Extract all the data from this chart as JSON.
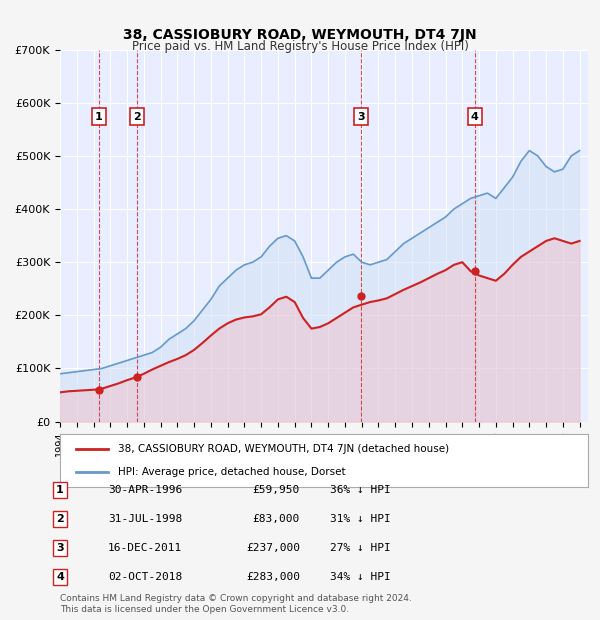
{
  "title": "38, CASSIOBURY ROAD, WEYMOUTH, DT4 7JN",
  "subtitle": "Price paid vs. HM Land Registry's House Price Index (HPI)",
  "ylabel": "",
  "ylim": [
    0,
    700000
  ],
  "yticks": [
    0,
    100000,
    200000,
    300000,
    400000,
    500000,
    600000,
    700000
  ],
  "ytick_labels": [
    "£0",
    "£100K",
    "£200K",
    "£300K",
    "£400K",
    "£500K",
    "£600K",
    "£700K"
  ],
  "xlim_start": 1994.0,
  "xlim_end": 2025.5,
  "background_color": "#f0f4ff",
  "plot_bg_color": "#e8eeff",
  "hpi_color": "#6699cc",
  "hpi_fill_color": "#d0dff5",
  "price_color": "#cc2222",
  "grid_color": "#ffffff",
  "transactions": [
    {
      "num": 1,
      "date_label": "30-APR-1996",
      "year": 1996.33,
      "price": 59950,
      "pct": "36%"
    },
    {
      "num": 2,
      "date_label": "31-JUL-1998",
      "year": 1998.58,
      "price": 83000,
      "pct": "31%"
    },
    {
      "num": 3,
      "date_label": "16-DEC-2011",
      "year": 2011.96,
      "price": 237000,
      "pct": "27%"
    },
    {
      "num": 4,
      "date_label": "02-OCT-2018",
      "year": 2018.75,
      "price": 283000,
      "pct": "34%"
    }
  ],
  "legend_property_label": "38, CASSIOBURY ROAD, WEYMOUTH, DT4 7JN (detached house)",
  "legend_hpi_label": "HPI: Average price, detached house, Dorset",
  "footer_text": "Contains HM Land Registry data © Crown copyright and database right 2024.\nThis data is licensed under the Open Government Licence v3.0.",
  "hpi_years": [
    1994,
    1994.5,
    1995,
    1995.5,
    1996,
    1996.5,
    1997,
    1997.5,
    1998,
    1998.5,
    1999,
    1999.5,
    2000,
    2000.5,
    2001,
    2001.5,
    2002,
    2002.5,
    2003,
    2003.5,
    2004,
    2004.5,
    2005,
    2005.5,
    2006,
    2006.5,
    2007,
    2007.5,
    2008,
    2008.5,
    2009,
    2009.5,
    2010,
    2010.5,
    2011,
    2011.5,
    2012,
    2012.5,
    2013,
    2013.5,
    2014,
    2014.5,
    2015,
    2015.5,
    2016,
    2016.5,
    2017,
    2017.5,
    2018,
    2018.5,
    2019,
    2019.5,
    2020,
    2020.5,
    2021,
    2021.5,
    2022,
    2022.5,
    2023,
    2023.5,
    2024,
    2024.5,
    2025
  ],
  "hpi_values": [
    90000,
    92000,
    94000,
    96000,
    98000,
    100000,
    105000,
    110000,
    115000,
    120000,
    125000,
    130000,
    140000,
    155000,
    165000,
    175000,
    190000,
    210000,
    230000,
    255000,
    270000,
    285000,
    295000,
    300000,
    310000,
    330000,
    345000,
    350000,
    340000,
    310000,
    270000,
    270000,
    285000,
    300000,
    310000,
    315000,
    300000,
    295000,
    300000,
    305000,
    320000,
    335000,
    345000,
    355000,
    365000,
    375000,
    385000,
    400000,
    410000,
    420000,
    425000,
    430000,
    420000,
    440000,
    460000,
    490000,
    510000,
    500000,
    480000,
    470000,
    475000,
    500000,
    510000
  ],
  "price_years": [
    1994,
    1994.5,
    1995,
    1995.5,
    1996,
    1996.5,
    1997,
    1997.5,
    1998,
    1998.5,
    1999,
    1999.5,
    2000,
    2000.5,
    2001,
    2001.5,
    2002,
    2002.5,
    2003,
    2003.5,
    2004,
    2004.5,
    2005,
    2005.5,
    2006,
    2006.5,
    2007,
    2007.5,
    2008,
    2008.5,
    2009,
    2009.5,
    2010,
    2010.5,
    2011,
    2011.5,
    2012,
    2012.5,
    2013,
    2013.5,
    2014,
    2014.5,
    2015,
    2015.5,
    2016,
    2016.5,
    2017,
    2017.5,
    2018,
    2018.5,
    2019,
    2019.5,
    2020,
    2020.5,
    2021,
    2021.5,
    2022,
    2022.5,
    2023,
    2023.5,
    2024,
    2024.5,
    2025
  ],
  "price_values": [
    55000,
    57000,
    58000,
    59000,
    59950,
    62000,
    67000,
    72000,
    78000,
    83000,
    90000,
    98000,
    105000,
    112000,
    118000,
    125000,
    135000,
    148000,
    162000,
    175000,
    185000,
    192000,
    196000,
    198000,
    202000,
    215000,
    230000,
    235000,
    225000,
    195000,
    175000,
    178000,
    185000,
    195000,
    205000,
    215000,
    220000,
    225000,
    228000,
    232000,
    240000,
    248000,
    255000,
    262000,
    270000,
    278000,
    285000,
    295000,
    300000,
    283000,
    275000,
    270000,
    265000,
    278000,
    295000,
    310000,
    320000,
    330000,
    340000,
    345000,
    340000,
    335000,
    340000
  ]
}
